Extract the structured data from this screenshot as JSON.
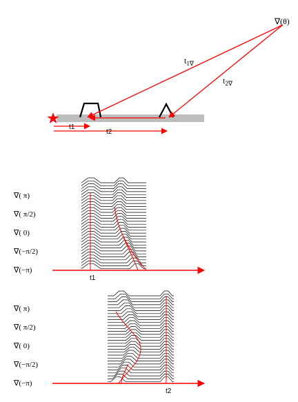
{
  "colors": {
    "accent": "#ff0000",
    "ground": "#bdbdbd",
    "ink": "#000000"
  },
  "top_diagram": {
    "source_label": "∇(θ)",
    "ray1_label": "t",
    "ray1_sub": "1∇",
    "ray2_label": "t",
    "ray2_sub": "2∇",
    "t1_label": "t1",
    "t2_label": "t2",
    "source_icon": "star-icon"
  },
  "panel1": {
    "y_labels": [
      "∇( π)",
      "∇( π/2)",
      "∇(  0)",
      "∇(−π/2)",
      "∇(−π)"
    ],
    "axis_label": "t1"
  },
  "panel2": {
    "y_labels": [
      "∇( π)",
      "∇( π/2)",
      "∇(  0)",
      "∇(−π/2)",
      "∇(−π)"
    ],
    "axis_label": "t2"
  }
}
